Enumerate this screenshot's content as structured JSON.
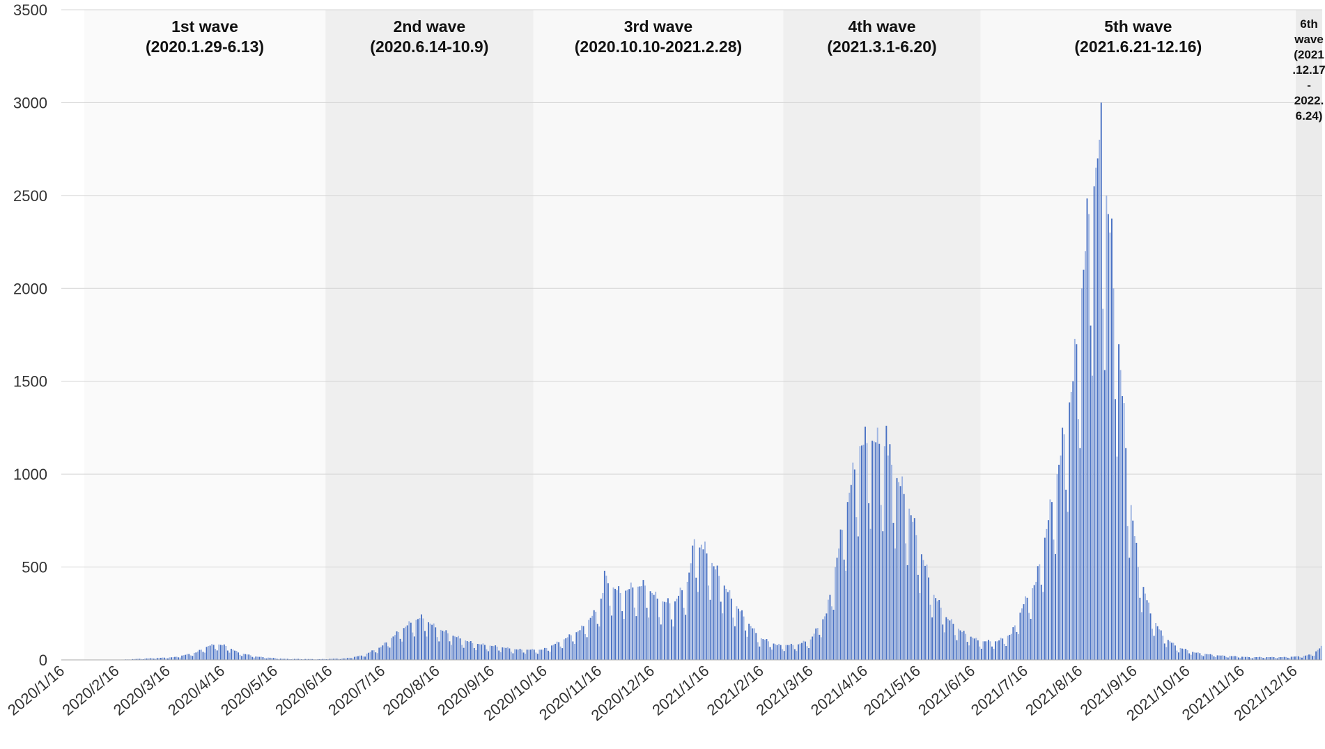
{
  "chart_data": {
    "type": "bar",
    "title": "",
    "xlabel": "",
    "ylabel": "",
    "ylim": [
      0,
      3500
    ],
    "yticks": [
      "0",
      "500",
      "1000",
      "1500",
      "2000",
      "2500",
      "3000",
      "3500"
    ],
    "x_tick_labels": [
      "2020/1/16",
      "2020/2/16",
      "2020/3/16",
      "2020/4/16",
      "2020/5/16",
      "2020/6/16",
      "2020/7/16",
      "2020/8/16",
      "2020/9/16",
      "2020/10/16",
      "2020/11/16",
      "2020/12/16",
      "2021/1/16",
      "2021/2/16",
      "2021/3/16",
      "2021/4/16",
      "2021/5/16",
      "2021/6/16",
      "2021/7/16",
      "2021/8/16",
      "2021/9/16",
      "2021/10/16",
      "2021/11/16",
      "2021/12/16"
    ],
    "x_range": [
      "2020-01-16",
      "2021-12-31"
    ],
    "grid": true,
    "bar_color": "#4a72c4",
    "bar_color_light": "#9fb5e2",
    "band_colors": [
      "#fafafa",
      "#efefef",
      "#f8f8f8",
      "#efefef",
      "#f8f8f8",
      "#ebebeb"
    ],
    "waves": [
      {
        "label": "1st wave",
        "range": "(2020.1.29-6.13)",
        "start": "2020-01-29",
        "end": "2020-06-13"
      },
      {
        "label": "2nd wave",
        "range": "(2020.6.14-10.9)",
        "start": "2020-06-14",
        "end": "2020-10-09"
      },
      {
        "label": "3rd wave",
        "range": "(2020.10.10-2021.2.28)",
        "start": "2020-10-10",
        "end": "2021-02-28"
      },
      {
        "label": "4th wave",
        "range": "(2021.3.1-6.20)",
        "start": "2021-03-01",
        "end": "2021-06-20"
      },
      {
        "label": "5th wave",
        "range": "(2021.6.21-12.16)",
        "start": "2021-06-21",
        "end": "2021-12-16"
      },
      {
        "label": "6th wave",
        "range_lines": [
          "(2021",
          ".12.17",
          "-",
          "2022.",
          "6.24)"
        ],
        "start": "2021-12-17",
        "end": "2022-06-24"
      }
    ],
    "series_daily": {
      "start_date": "2020-01-16",
      "anchors": [
        [
          "2020-01-16",
          0
        ],
        [
          "2020-01-29",
          1
        ],
        [
          "2020-02-20",
          2
        ],
        [
          "2020-03-05",
          8
        ],
        [
          "2020-03-20",
          15
        ],
        [
          "2020-04-01",
          40
        ],
        [
          "2020-04-08",
          75
        ],
        [
          "2020-04-13",
          85
        ],
        [
          "2020-04-18",
          75
        ],
        [
          "2020-04-25",
          40
        ],
        [
          "2020-05-05",
          18
        ],
        [
          "2020-05-20",
          6
        ],
        [
          "2020-06-10",
          4
        ],
        [
          "2020-06-25",
          8
        ],
        [
          "2020-07-05",
          25
        ],
        [
          "2020-07-15",
          70
        ],
        [
          "2020-07-25",
          150
        ],
        [
          "2020-08-01",
          200
        ],
        [
          "2020-08-07",
          230
        ],
        [
          "2020-08-15",
          175
        ],
        [
          "2020-08-25",
          130
        ],
        [
          "2020-09-05",
          90
        ],
        [
          "2020-09-20",
          70
        ],
        [
          "2020-10-01",
          55
        ],
        [
          "2020-10-15",
          55
        ],
        [
          "2020-10-25",
          100
        ],
        [
          "2020-11-05",
          160
        ],
        [
          "2020-11-15",
          270
        ],
        [
          "2020-11-20",
          420
        ],
        [
          "2020-11-28",
          360
        ],
        [
          "2020-12-05",
          390
        ],
        [
          "2020-12-12",
          400
        ],
        [
          "2020-12-20",
          320
        ],
        [
          "2020-12-28",
          300
        ],
        [
          "2021-01-05",
          420
        ],
        [
          "2021-01-09",
          620
        ],
        [
          "2021-01-15",
          590
        ],
        [
          "2021-01-22",
          470
        ],
        [
          "2021-01-30",
          330
        ],
        [
          "2021-02-07",
          220
        ],
        [
          "2021-02-15",
          120
        ],
        [
          "2021-02-25",
          80
        ],
        [
          "2021-03-08",
          80
        ],
        [
          "2021-03-16",
          110
        ],
        [
          "2021-03-25",
          250
        ],
        [
          "2021-04-01",
          600
        ],
        [
          "2021-04-07",
          900
        ],
        [
          "2021-04-13",
          1150
        ],
        [
          "2021-04-20",
          1180
        ],
        [
          "2021-04-27",
          1150
        ],
        [
          "2021-05-03",
          1000
        ],
        [
          "2021-05-10",
          850
        ],
        [
          "2021-05-17",
          600
        ],
        [
          "2021-05-25",
          350
        ],
        [
          "2021-06-01",
          230
        ],
        [
          "2021-06-10",
          150
        ],
        [
          "2021-06-20",
          100
        ],
        [
          "2021-06-30",
          100
        ],
        [
          "2021-07-08",
          140
        ],
        [
          "2021-07-15",
          300
        ],
        [
          "2021-07-22",
          420
        ],
        [
          "2021-07-30",
          800
        ],
        [
          "2021-08-05",
          1100
        ],
        [
          "2021-08-12",
          1500
        ],
        [
          "2021-08-18",
          2100
        ],
        [
          "2021-08-22",
          2500
        ],
        [
          "2021-08-26",
          2700
        ],
        [
          "2021-08-30",
          2600
        ],
        [
          "2021-09-03",
          2200
        ],
        [
          "2021-09-07",
          1700
        ],
        [
          "2021-09-12",
          1000
        ],
        [
          "2021-09-18",
          500
        ],
        [
          "2021-09-25",
          250
        ],
        [
          "2021-10-02",
          130
        ],
        [
          "2021-10-10",
          70
        ],
        [
          "2021-10-20",
          40
        ],
        [
          "2021-11-01",
          25
        ],
        [
          "2021-11-20",
          15
        ],
        [
          "2021-12-10",
          15
        ],
        [
          "2021-12-20",
          20
        ],
        [
          "2021-12-26",
          30
        ],
        [
          "2021-12-31",
          70
        ]
      ],
      "spikes": [
        [
          "2021-08-28",
          3000
        ],
        [
          "2021-08-27",
          2800
        ],
        [
          "2021-08-24",
          2550
        ],
        [
          "2021-09-04",
          2000
        ],
        [
          "2021-04-23",
          1250
        ],
        [
          "2021-04-28",
          1260
        ],
        [
          "2021-01-09",
          650
        ],
        [
          "2021-01-13",
          620
        ],
        [
          "2020-11-19",
          480
        ],
        [
          "2020-08-07",
          245
        ]
      ]
    }
  }
}
